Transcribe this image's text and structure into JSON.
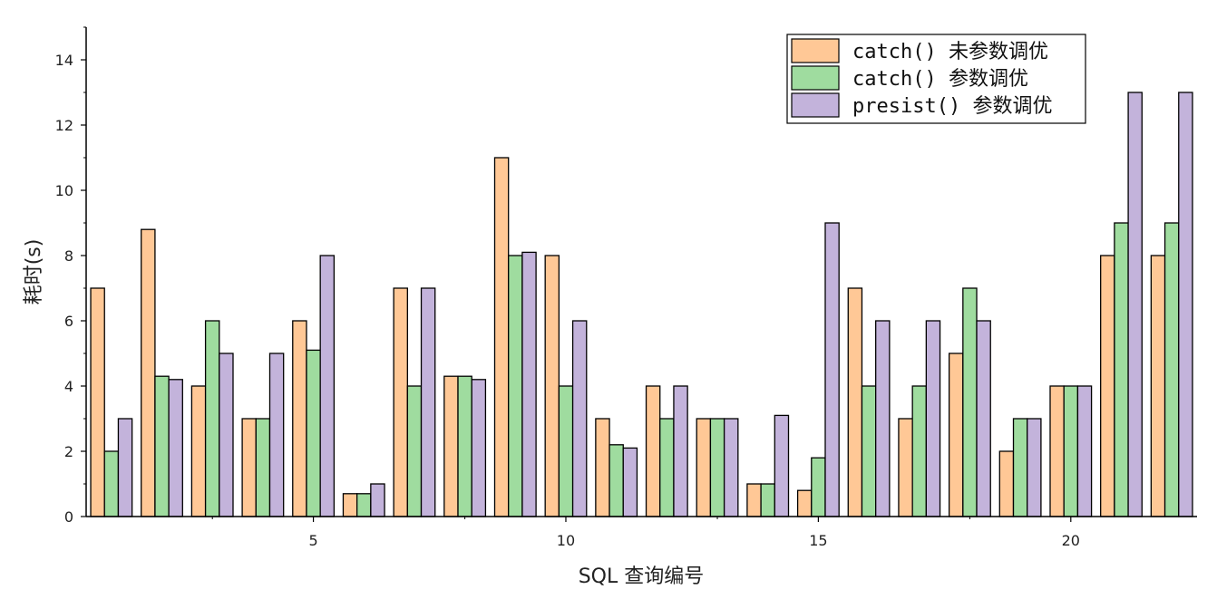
{
  "chart_data": {
    "type": "bar",
    "categories": [
      1,
      2,
      3,
      4,
      5,
      6,
      7,
      8,
      9,
      10,
      11,
      12,
      13,
      14,
      15,
      16,
      17,
      18,
      19,
      20,
      21,
      22
    ],
    "x_ticks": [
      5,
      10,
      15,
      20
    ],
    "xlabel": "SQL 查询编号",
    "ylabel": "耗时(s)",
    "ylim": [
      0,
      15
    ],
    "y_ticks": [
      0,
      2,
      4,
      6,
      8,
      10,
      12,
      14
    ],
    "grid": false,
    "legend_position": "top-right",
    "series": [
      {
        "name": "catch() 未参数调优",
        "color": "#ffc896",
        "values": [
          7,
          8.8,
          4,
          3,
          6,
          0.7,
          7,
          4.3,
          11,
          8,
          3,
          4,
          3,
          1,
          0.8,
          7,
          3,
          5,
          2,
          4,
          8,
          8
        ]
      },
      {
        "name": "catch() 参数调优",
        "color": "#9fdc9f",
        "values": [
          2,
          4.3,
          6,
          3,
          5.1,
          0.7,
          4,
          4.3,
          8,
          4,
          2.2,
          3,
          3,
          1,
          1.8,
          4,
          4,
          7,
          3,
          4,
          9,
          9
        ]
      },
      {
        "name": "presist() 参数调优",
        "color": "#c3b3db",
        "values": [
          3,
          4.2,
          5,
          5,
          8,
          1,
          7,
          4.2,
          8.1,
          6,
          2.1,
          4,
          3,
          3.1,
          9,
          6,
          6,
          6,
          3,
          4,
          13,
          13
        ]
      }
    ]
  }
}
